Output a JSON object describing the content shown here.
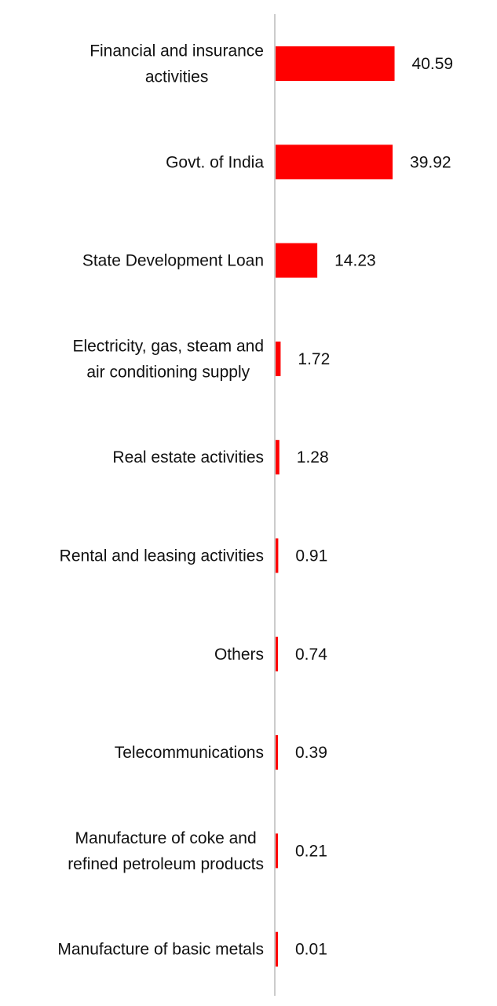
{
  "chart_data": {
    "type": "bar",
    "orientation": "horizontal",
    "categories": [
      [
        "Financial and insurance",
        "activities"
      ],
      [
        "Govt. of India"
      ],
      [
        "State Development Loan"
      ],
      [
        "Electricity, gas, steam and",
        "air conditioning supply"
      ],
      [
        "Real estate activities"
      ],
      [
        "Rental and leasing activities"
      ],
      [
        "Others"
      ],
      [
        "Telecommunications"
      ],
      [
        "Manufacture of coke and",
        "refined petroleum products"
      ],
      [
        "Manufacture of basic metals"
      ]
    ],
    "values": [
      40.59,
      39.92,
      14.23,
      1.72,
      1.28,
      0.91,
      0.74,
      0.39,
      0.21,
      0.01
    ],
    "value_labels": [
      "40.59",
      "39.92",
      "14.23",
      "1.72",
      "1.28",
      "0.91",
      "0.74",
      "0.39",
      "0.21",
      "0.01"
    ],
    "title": "",
    "xlabel": "",
    "ylabel": "",
    "xlim": [
      0,
      45
    ],
    "grid": false,
    "legend": "none",
    "bar_color": "#ff0000",
    "axis_color": "#cccccc"
  }
}
